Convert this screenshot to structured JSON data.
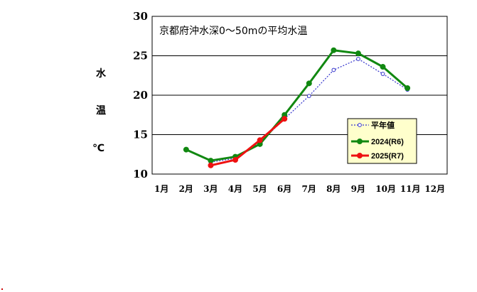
{
  "chart_data": {
    "type": "line",
    "title": "京都府沖水深0～50mの平均水温",
    "ylabel": [
      "水",
      "温",
      "℃"
    ],
    "categories": [
      "1月",
      "2月",
      "3月",
      "4月",
      "5月",
      "6月",
      "7月",
      "8月",
      "9月",
      "10月",
      "11月",
      "12月"
    ],
    "ylim": [
      10,
      30
    ],
    "yticks": [
      10,
      15,
      20,
      25,
      30
    ],
    "grid": true,
    "legend_position": "right",
    "series": [
      {
        "name": "平年値",
        "color": "#3333cc",
        "style": "dotted-open",
        "values": [
          null,
          null,
          11.5,
          12.0,
          14.0,
          17.0,
          19.9,
          23.2,
          24.6,
          22.7,
          20.7,
          null
        ]
      },
      {
        "name": "2024(R6)",
        "color": "#118811",
        "style": "solid",
        "values": [
          null,
          13.1,
          11.7,
          12.2,
          13.8,
          17.5,
          21.5,
          25.7,
          25.3,
          23.6,
          20.9,
          null
        ]
      },
      {
        "name": "2025(R7)",
        "color": "#ee1111",
        "style": "solid",
        "values": [
          null,
          null,
          11.1,
          11.8,
          14.3,
          17.0,
          null,
          null,
          null,
          null,
          null,
          null
        ]
      }
    ]
  }
}
